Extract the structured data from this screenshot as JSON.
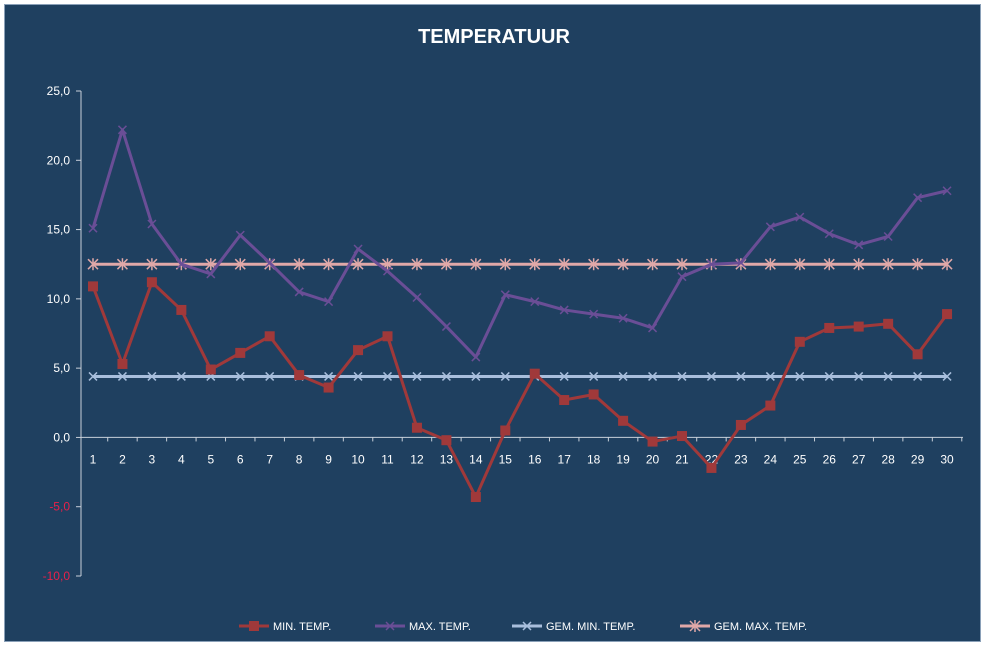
{
  "chart_data": {
    "type": "line",
    "title": "TEMPERATUUR",
    "xlabel": "",
    "ylabel": "",
    "categories": [
      "1",
      "2",
      "3",
      "4",
      "5",
      "6",
      "7",
      "8",
      "9",
      "10",
      "11",
      "12",
      "13",
      "14",
      "15",
      "16",
      "17",
      "18",
      "19",
      "20",
      "21",
      "22",
      "23",
      "24",
      "25",
      "26",
      "27",
      "28",
      "29",
      "30"
    ],
    "yticks": [
      "25,0",
      "20,0",
      "15,0",
      "10,0",
      "5,0",
      "0,0",
      "-5,0",
      "-10,0"
    ],
    "ylim": [
      -10,
      25
    ],
    "grid": false,
    "legend_position": "bottom",
    "series": [
      {
        "name": "MIN. TEMP.",
        "color": "#a0393a",
        "marker": "square",
        "values": [
          10.9,
          5.3,
          11.2,
          9.2,
          4.9,
          6.1,
          7.3,
          4.5,
          3.6,
          6.3,
          7.3,
          0.7,
          -0.2,
          -4.3,
          0.5,
          4.6,
          2.7,
          3.1,
          1.2,
          -0.3,
          0.1,
          -2.2,
          0.9,
          2.3,
          6.9,
          7.9,
          8.0,
          8.2,
          6.0,
          8.9
        ]
      },
      {
        "name": "MAX. TEMP.",
        "color": "#6a4e96",
        "marker": "x",
        "values": [
          15.1,
          22.2,
          15.4,
          12.5,
          11.8,
          14.6,
          12.6,
          10.5,
          9.8,
          13.6,
          12.0,
          10.1,
          8.0,
          5.8,
          10.3,
          9.8,
          9.2,
          8.9,
          8.6,
          7.9,
          11.6,
          12.5,
          12.6,
          15.2,
          15.9,
          14.7,
          13.9,
          14.5,
          17.3,
          17.8
        ]
      },
      {
        "name": "GEM. MIN. TEMP.",
        "color": "#a8bedc",
        "marker": "x",
        "values": [
          4.4,
          4.4,
          4.4,
          4.4,
          4.4,
          4.4,
          4.4,
          4.4,
          4.4,
          4.4,
          4.4,
          4.4,
          4.4,
          4.4,
          4.4,
          4.4,
          4.4,
          4.4,
          4.4,
          4.4,
          4.4,
          4.4,
          4.4,
          4.4,
          4.4,
          4.4,
          4.4,
          4.4,
          4.4,
          4.4
        ]
      },
      {
        "name": "GEM. MAX. TEMP.",
        "color": "#e0a8a8",
        "marker": "star",
        "values": [
          12.5,
          12.5,
          12.5,
          12.5,
          12.5,
          12.5,
          12.5,
          12.5,
          12.5,
          12.5,
          12.5,
          12.5,
          12.5,
          12.5,
          12.5,
          12.5,
          12.5,
          12.5,
          12.5,
          12.5,
          12.5,
          12.5,
          12.5,
          12.5,
          12.5,
          12.5,
          12.5,
          12.5,
          12.5,
          12.5
        ]
      }
    ],
    "colors": {
      "background": "#1f4060",
      "axis": "#c8d0da",
      "negative_tick": "#e8204a"
    }
  }
}
